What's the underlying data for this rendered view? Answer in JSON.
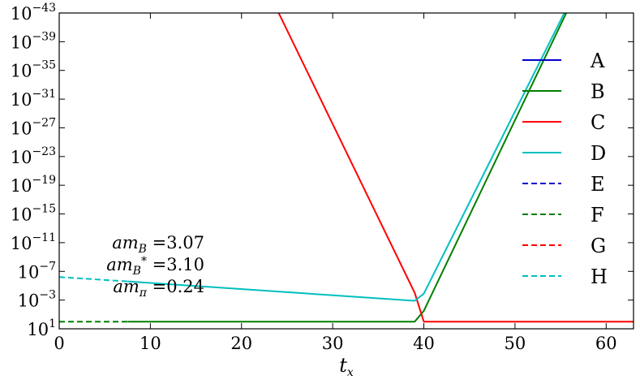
{
  "chart_data": {
    "type": "line",
    "title": "",
    "xlabel_main": "t",
    "xlabel_sub": "x",
    "ylabel": "",
    "xlim": [
      0,
      63
    ],
    "ylim_exp": [
      -43,
      1
    ],
    "y_scale": "log",
    "x_ticks": [
      0,
      10,
      20,
      30,
      40,
      50,
      60
    ],
    "y_tick_exponents": [
      1,
      -3,
      -7,
      -11,
      -15,
      -19,
      -23,
      -27,
      -31,
      -35,
      -39,
      -43
    ],
    "grid": false,
    "legend_position": "right",
    "colors": {
      "blue": "#0000cc",
      "green": "#007f00",
      "red": "#ff0000",
      "cyan": "#00bfbf"
    },
    "series": [
      {
        "name": "A",
        "color": "#0000cc",
        "dash": false,
        "points": []
      },
      {
        "name": "B",
        "color": "#007f00",
        "dash": false,
        "points": [
          [
            7.5,
            0
          ],
          [
            39,
            0
          ],
          [
            40,
            -1.5
          ],
          [
            56,
            -44
          ]
        ]
      },
      {
        "name": "C",
        "color": "#ff0000",
        "dash": false,
        "points": [
          [
            23.7,
            -44
          ],
          [
            39,
            -4
          ],
          [
            40,
            0
          ],
          [
            63,
            0
          ]
        ]
      },
      {
        "name": "D",
        "color": "#00bfbf",
        "dash": false,
        "points": [
          [
            7.5,
            -5.6
          ],
          [
            39,
            -2.9
          ],
          [
            40,
            -3.9
          ],
          [
            55.8,
            -44
          ]
        ]
      },
      {
        "name": "E",
        "color": "#0000cc",
        "dash": true,
        "points": []
      },
      {
        "name": "F",
        "color": "#007f00",
        "dash": true,
        "points": [
          [
            0,
            0
          ],
          [
            7.5,
            0
          ]
        ]
      },
      {
        "name": "G",
        "color": "#ff0000",
        "dash": true,
        "points": []
      },
      {
        "name": "H",
        "color": "#00bfbf",
        "dash": true,
        "points": [
          [
            0,
            -6.2
          ],
          [
            7.5,
            -5.6
          ]
        ]
      }
    ],
    "annotations": [
      {
        "lhs": "am",
        "sub": "B",
        "sup": "",
        "rhs": "=3.07"
      },
      {
        "lhs": "am",
        "sub": "B",
        "sup": "*",
        "rhs": "=3.10"
      },
      {
        "lhs": "am",
        "sub": "π",
        "sup": "",
        "rhs": "=0.24"
      }
    ]
  }
}
